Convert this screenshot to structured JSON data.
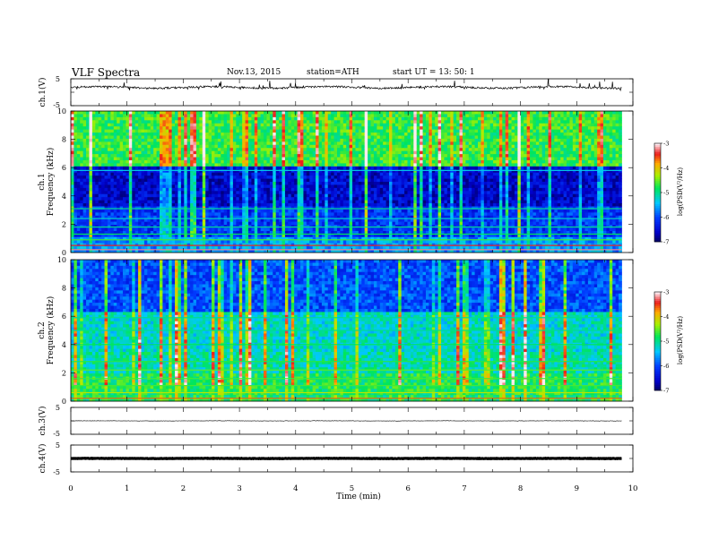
{
  "header": {
    "title": "VLF Spectra",
    "date": "Nov.13, 2015",
    "station": "station=ATH",
    "start": "start UT = 13: 50: 1"
  },
  "chart_data": [
    {
      "type": "line",
      "ylabel": "ch.1(V)",
      "ylim": [
        -5,
        5
      ],
      "yticks": [
        "5",
        "-5"
      ],
      "baseline": 1.8,
      "color": "#000000"
    },
    {
      "type": "heatmap",
      "ylabel": "ch.1",
      "ylabel2": "Frequency (kHz)",
      "ylim": [
        0,
        10
      ],
      "yticks": [
        "0",
        "2",
        "4",
        "6",
        "8",
        "10"
      ],
      "colorbar": {
        "label": "log(PSD(V²/Hz)",
        "range": [
          -7,
          -3
        ],
        "ticks": [
          "-3",
          "-4",
          "-5",
          "-6",
          "-7"
        ]
      }
    },
    {
      "type": "heatmap",
      "ylabel": "ch.2",
      "ylabel2": "Frequency (kHz)",
      "ylim": [
        0,
        10
      ],
      "yticks": [
        "0",
        "2",
        "4",
        "6",
        "8",
        "10"
      ],
      "colorbar": {
        "label": "log(PSD(V²/Hz)",
        "range": [
          -7,
          -3
        ],
        "ticks": [
          "-3",
          "-4",
          "-5",
          "-6",
          "-7"
        ]
      }
    },
    {
      "type": "line",
      "ylabel": "ch.3(V)",
      "ylim": [
        -5,
        5
      ],
      "yticks": [
        "5",
        "-5"
      ],
      "baseline": 0,
      "color": "#000000"
    },
    {
      "type": "line",
      "ylabel": "ch.4(V)",
      "ylim": [
        -5,
        5
      ],
      "yticks": [
        "5",
        "-5"
      ],
      "baseline": 0,
      "color": "#000000"
    }
  ],
  "xaxis": {
    "label": "Time (min)",
    "xlim": [
      0,
      10
    ],
    "ticks": [
      "0",
      "1",
      "2",
      "3",
      "4",
      "5",
      "6",
      "7",
      "8",
      "9",
      "10"
    ],
    "data_end": 9.8
  }
}
